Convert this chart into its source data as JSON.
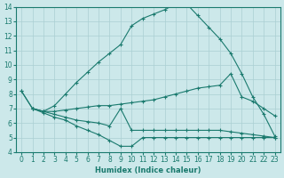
{
  "xlabel": "Humidex (Indice chaleur)",
  "background_color": "#cce8ea",
  "grid_color": "#aacfd2",
  "line_color": "#1a7a6e",
  "xlim": [
    -0.5,
    23.5
  ],
  "ylim": [
    4,
    14
  ],
  "xticks": [
    0,
    1,
    2,
    3,
    4,
    5,
    6,
    7,
    8,
    9,
    10,
    11,
    12,
    13,
    14,
    15,
    16,
    17,
    18,
    19,
    20,
    21,
    22,
    23
  ],
  "yticks": [
    4,
    5,
    6,
    7,
    8,
    9,
    10,
    11,
    12,
    13,
    14
  ],
  "curves": [
    {
      "x": [
        0,
        1,
        2,
        3,
        4,
        5,
        6,
        7,
        8,
        9,
        10,
        11,
        12,
        13,
        14,
        15,
        16,
        17,
        18,
        19,
        20,
        21,
        22,
        23
      ],
      "y": [
        8.2,
        7.0,
        6.8,
        7.2,
        8.0,
        8.8,
        9.5,
        10.2,
        10.8,
        11.4,
        12.7,
        13.2,
        13.5,
        13.8,
        14.2,
        14.2,
        13.4,
        12.6,
        11.8,
        10.8,
        9.4,
        7.8,
        6.6,
        5.1
      ]
    },
    {
      "x": [
        0,
        1,
        2,
        3,
        4,
        5,
        6,
        7,
        8,
        9,
        10,
        11,
        12,
        13,
        14,
        15,
        16,
        17,
        18,
        19,
        20,
        21,
        22,
        23
      ],
      "y": [
        8.2,
        7.0,
        6.8,
        6.8,
        6.9,
        7.0,
        7.1,
        7.2,
        7.2,
        7.3,
        7.4,
        7.5,
        7.6,
        7.8,
        8.0,
        8.2,
        8.4,
        8.5,
        8.6,
        9.4,
        7.8,
        7.5,
        7.0,
        6.5
      ]
    },
    {
      "x": [
        1,
        2,
        3,
        4,
        5,
        6,
        7,
        8,
        9,
        10,
        11,
        12,
        13,
        14,
        15,
        16,
        17,
        18,
        19,
        20,
        21,
        22,
        23
      ],
      "y": [
        7.0,
        6.8,
        6.6,
        6.4,
        6.2,
        6.1,
        6.0,
        5.8,
        7.0,
        5.5,
        5.5,
        5.5,
        5.5,
        5.5,
        5.5,
        5.5,
        5.5,
        5.5,
        5.4,
        5.3,
        5.2,
        5.1,
        5.0
      ]
    },
    {
      "x": [
        1,
        2,
        3,
        4,
        5,
        6,
        7,
        8,
        9,
        10,
        11,
        12,
        13,
        14,
        15,
        16,
        17,
        18,
        19,
        20,
        21,
        22,
        23
      ],
      "y": [
        7.0,
        6.7,
        6.4,
        6.2,
        5.8,
        5.5,
        5.2,
        4.8,
        4.4,
        4.4,
        5.0,
        5.0,
        5.0,
        5.0,
        5.0,
        5.0,
        5.0,
        5.0,
        5.0,
        5.0,
        5.0,
        5.0,
        5.0
      ]
    }
  ]
}
